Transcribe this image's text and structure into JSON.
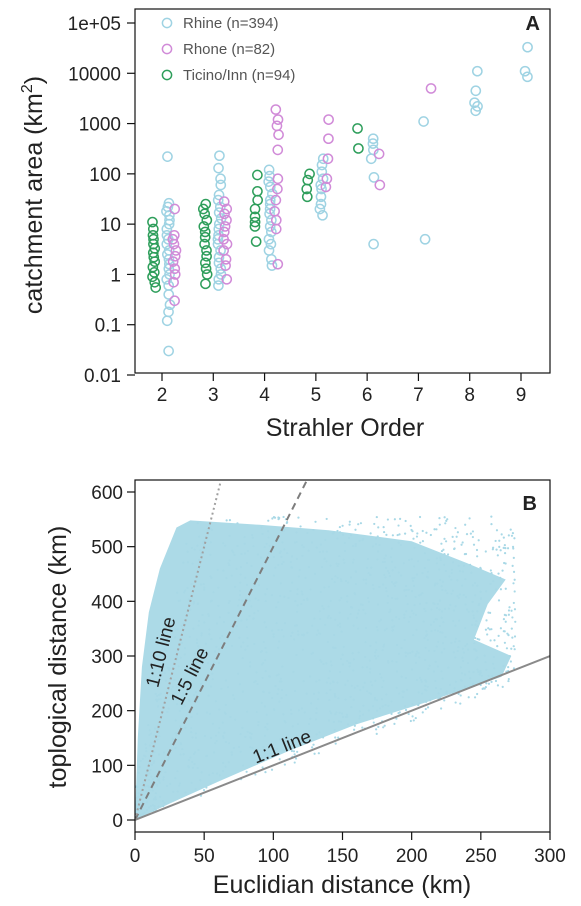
{
  "colors": {
    "rhine": "#9fd3e3",
    "rhone": "#d18bd8",
    "ticino": "#2e9e5b",
    "scatter": "#a8d8e6",
    "ref_1_1": "#8a8a8a",
    "ref_1_5": "#7d7d7d",
    "ref_1_10": "#a0a0a0"
  },
  "chart_data": [
    {
      "type": "scatter",
      "panel_label": "A",
      "xlabel": "Strahler Order",
      "ylabel": "catchment area (km",
      "ylabel_sup": "2",
      "ylabel_close": ")",
      "yscale": "log",
      "ylim": [
        0.01,
        100000
      ],
      "xlim": [
        1.5,
        9.5
      ],
      "xticks": [
        2,
        3,
        4,
        5,
        6,
        7,
        8,
        9
      ],
      "xtick_labels": [
        "2",
        "3",
        "4",
        "5",
        "6",
        "7",
        "8",
        "9"
      ],
      "yticks": [
        0.01,
        0.1,
        1,
        10,
        100,
        1000,
        10000,
        100000
      ],
      "ytick_labels": [
        "0.01",
        "0.1",
        "1",
        "10",
        "100",
        "1000",
        "10000",
        "1e+05"
      ],
      "legend": {
        "position": "top-left",
        "entries": [
          {
            "label": "Rhine (n=394)",
            "color_key": "rhine"
          },
          {
            "label": "Rhone (n=82)",
            "color_key": "rhone"
          },
          {
            "label": "Ticino/Inn (n=94)",
            "color_key": "ticino"
          }
        ]
      },
      "series": [
        {
          "name": "Rhine (n=394)",
          "color_key": "rhine",
          "points": [
            [
              2,
              0.03
            ],
            [
              2,
              0.12
            ],
            [
              2,
              0.18
            ],
            [
              2,
              0.25
            ],
            [
              2,
              0.4
            ],
            [
              2,
              0.6
            ],
            [
              2,
              0.8
            ],
            [
              2,
              1.0
            ],
            [
              2,
              1.3
            ],
            [
              2,
              1.6
            ],
            [
              2,
              2
            ],
            [
              2,
              2.5
            ],
            [
              2,
              3
            ],
            [
              2,
              4
            ],
            [
              2,
              5
            ],
            [
              2,
              6
            ],
            [
              2,
              8
            ],
            [
              2,
              10
            ],
            [
              2,
              12
            ],
            [
              2,
              15
            ],
            [
              2,
              18
            ],
            [
              2,
              22
            ],
            [
              2,
              26
            ],
            [
              2,
              220
            ],
            [
              3,
              0.6
            ],
            [
              3,
              0.8
            ],
            [
              3,
              1
            ],
            [
              3,
              1.3
            ],
            [
              3,
              1.7
            ],
            [
              3,
              2.2
            ],
            [
              3,
              3
            ],
            [
              3,
              4
            ],
            [
              3,
              5
            ],
            [
              3,
              6
            ],
            [
              3,
              8
            ],
            [
              3,
              10
            ],
            [
              3,
              13
            ],
            [
              3,
              17
            ],
            [
              3,
              22
            ],
            [
              3,
              30
            ],
            [
              3,
              38
            ],
            [
              3,
              60
            ],
            [
              3,
              80
            ],
            [
              3,
              130
            ],
            [
              3,
              230
            ],
            [
              4,
              1.5
            ],
            [
              4,
              2
            ],
            [
              4,
              3
            ],
            [
              4,
              4
            ],
            [
              4,
              5
            ],
            [
              4,
              7
            ],
            [
              4,
              9
            ],
            [
              4,
              12
            ],
            [
              4,
              16
            ],
            [
              4,
              20
            ],
            [
              4,
              25
            ],
            [
              4,
              30
            ],
            [
              4,
              40
            ],
            [
              4,
              55
            ],
            [
              4,
              70
            ],
            [
              4,
              90
            ],
            [
              4,
              120
            ],
            [
              5,
              15
            ],
            [
              5,
              20
            ],
            [
              5,
              25
            ],
            [
              5,
              35
            ],
            [
              5,
              50
            ],
            [
              5,
              60
            ],
            [
              5,
              80
            ],
            [
              5,
              110
            ],
            [
              5,
              150
            ],
            [
              5,
              200
            ],
            [
              6,
              4
            ],
            [
              6,
              85
            ],
            [
              6,
              200
            ],
            [
              6,
              300
            ],
            [
              6,
              400
            ],
            [
              6,
              500
            ],
            [
              7,
              5
            ],
            [
              7,
              1100
            ],
            [
              8,
              1800
            ],
            [
              8,
              2200
            ],
            [
              8,
              2600
            ],
            [
              8,
              4500
            ],
            [
              8,
              11000
            ],
            [
              9,
              8500
            ],
            [
              9,
              11000
            ],
            [
              9,
              33000
            ]
          ]
        },
        {
          "name": "Rhone (n=82)",
          "color_key": "rhone",
          "points": [
            [
              2,
              0.3
            ],
            [
              2,
              0.7
            ],
            [
              2,
              1
            ],
            [
              2,
              1.3
            ],
            [
              2,
              1.8
            ],
            [
              2,
              2.3
            ],
            [
              2,
              3
            ],
            [
              2,
              4
            ],
            [
              2,
              5
            ],
            [
              2,
              6
            ],
            [
              2,
              20
            ],
            [
              3,
              0.8
            ],
            [
              3,
              1.5
            ],
            [
              3,
              2
            ],
            [
              3,
              3
            ],
            [
              3,
              4
            ],
            [
              3,
              5
            ],
            [
              3,
              7
            ],
            [
              3,
              9
            ],
            [
              3,
              12
            ],
            [
              3,
              16
            ],
            [
              3,
              20
            ],
            [
              3,
              28
            ],
            [
              4,
              1.6
            ],
            [
              4,
              8
            ],
            [
              4,
              12
            ],
            [
              4,
              18
            ],
            [
              4,
              30
            ],
            [
              4,
              50
            ],
            [
              4,
              80
            ],
            [
              4,
              300
            ],
            [
              4,
              600
            ],
            [
              4,
              900
            ],
            [
              4,
              1200
            ],
            [
              4,
              1900
            ],
            [
              5,
              55
            ],
            [
              5,
              80
            ],
            [
              5,
              200
            ],
            [
              5,
              500
            ],
            [
              5,
              1200
            ],
            [
              6,
              60
            ],
            [
              6,
              250
            ],
            [
              7,
              5000
            ]
          ]
        },
        {
          "name": "Ticino/Inn (n=94)",
          "color_key": "ticino",
          "points": [
            [
              2,
              0.55
            ],
            [
              2,
              0.7
            ],
            [
              2,
              0.9
            ],
            [
              2,
              1.1
            ],
            [
              2,
              1.4
            ],
            [
              2,
              1.8
            ],
            [
              2,
              2.2
            ],
            [
              2,
              2.7
            ],
            [
              2,
              3.3
            ],
            [
              2,
              4
            ],
            [
              2,
              5
            ],
            [
              2,
              6
            ],
            [
              2,
              8
            ],
            [
              2,
              11
            ],
            [
              3,
              0.65
            ],
            [
              3,
              1
            ],
            [
              3,
              1.3
            ],
            [
              3,
              1.7
            ],
            [
              3,
              2.3
            ],
            [
              3,
              3
            ],
            [
              3,
              4
            ],
            [
              3,
              5.5
            ],
            [
              3,
              7
            ],
            [
              3,
              9
            ],
            [
              3,
              12
            ],
            [
              3,
              16
            ],
            [
              3,
              20
            ],
            [
              3,
              25
            ],
            [
              4,
              4.5
            ],
            [
              4,
              9
            ],
            [
              4,
              11
            ],
            [
              4,
              14
            ],
            [
              4,
              20
            ],
            [
              4,
              30
            ],
            [
              4,
              45
            ],
            [
              4,
              95
            ],
            [
              5,
              35
            ],
            [
              5,
              50
            ],
            [
              5,
              75
            ],
            [
              5,
              100
            ],
            [
              6,
              320
            ],
            [
              6,
              800
            ]
          ]
        }
      ]
    },
    {
      "type": "scatter",
      "panel_label": "B",
      "xlabel": "Euclidian distance (km)",
      "ylabel": "toplogical distance (km)",
      "xlim": [
        0,
        300
      ],
      "ylim": [
        0,
        620
      ],
      "xticks": [
        0,
        50,
        100,
        150,
        200,
        250,
        300
      ],
      "xtick_labels": [
        "0",
        "50",
        "100",
        "150",
        "200",
        "250",
        "300"
      ],
      "yticks": [
        0,
        100,
        200,
        300,
        400,
        500,
        600
      ],
      "ytick_labels": [
        "0",
        "100",
        "200",
        "300",
        "400",
        "500",
        "600"
      ],
      "point_cloud": {
        "description_bounds": "dense cloud between 1:1 line and ~1:10 line, topological distance up to ~550 km, euclidean distance up to ~270 km",
        "x_max": 275,
        "y_max": 555
      },
      "reference_lines": [
        {
          "label": "1:1 line",
          "slope": 1,
          "style": "solid",
          "color_key": "ref_1_1"
        },
        {
          "label": "1:5 line",
          "slope": 5,
          "style": "dashed",
          "color_key": "ref_1_5"
        },
        {
          "label": "1:10 line",
          "slope": 10,
          "style": "dotted",
          "color_key": "ref_1_10"
        }
      ]
    }
  ]
}
